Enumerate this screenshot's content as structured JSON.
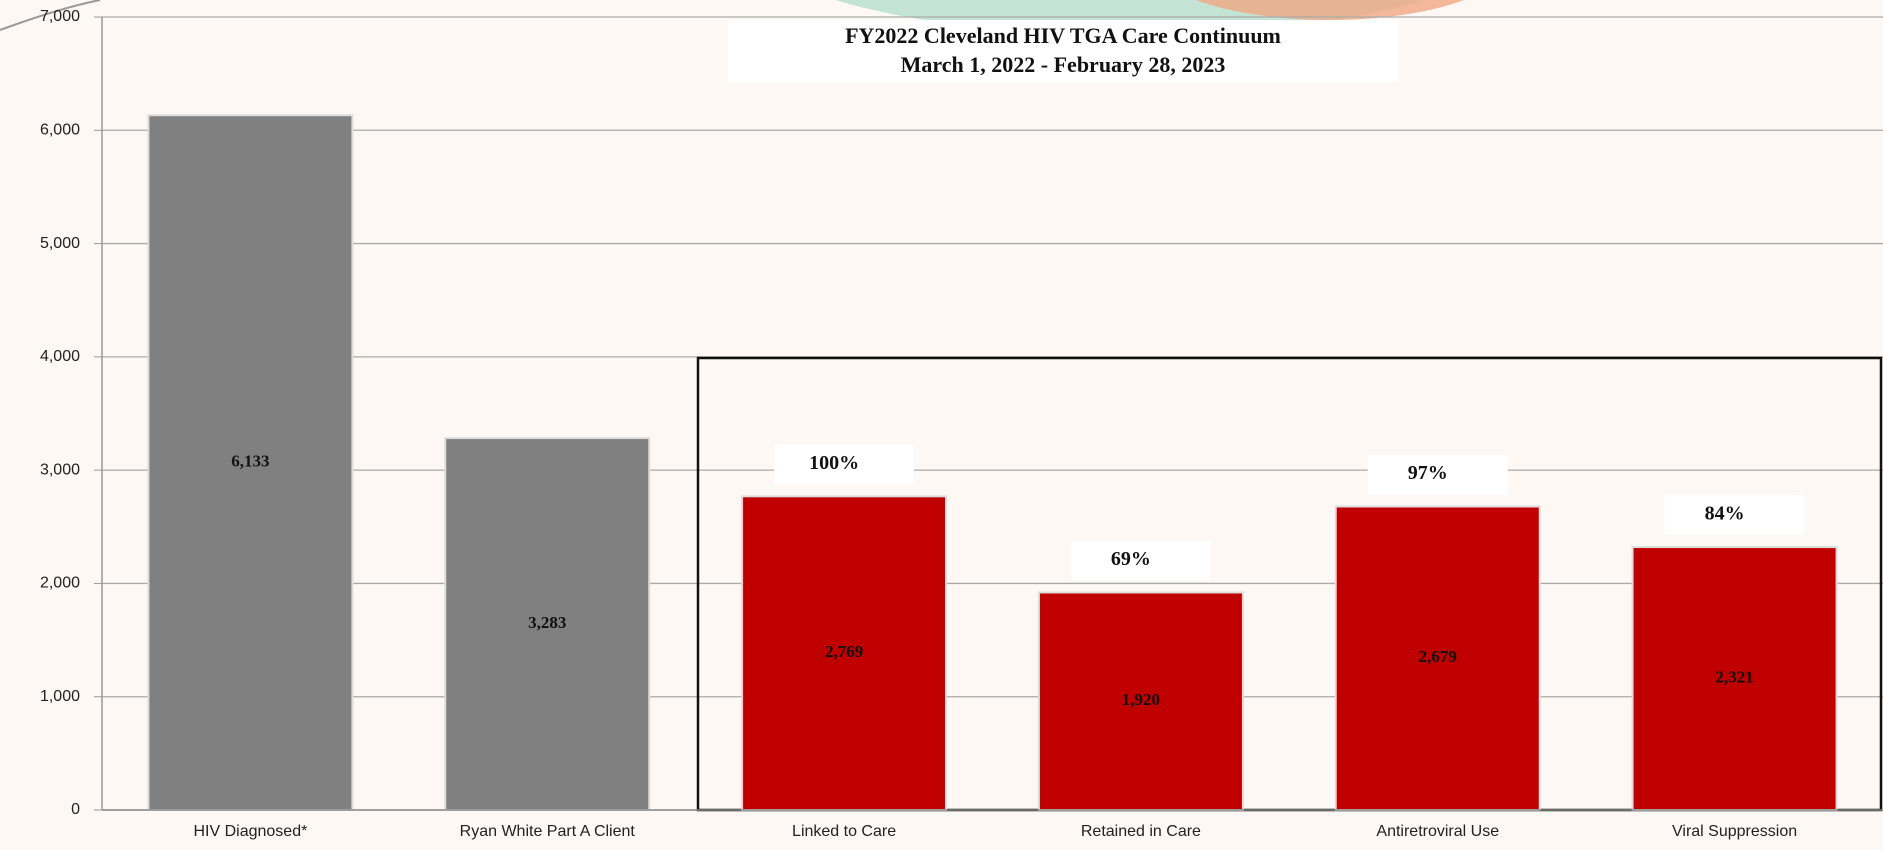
{
  "chart_data": {
    "type": "bar",
    "title": "FY2022 Cleveland HIV TGA Care Continuum",
    "subtitle": "March 1, 2022 - February 28, 2023",
    "categories": [
      "HIV Diagnosed*",
      "Ryan White Part A Client",
      "Linked to Care",
      "Retained in Care",
      "Antiretroviral Use",
      "Viral Suppression"
    ],
    "values": [
      6133,
      3283,
      2769,
      1920,
      2679,
      2321
    ],
    "value_labels": [
      "6,133",
      "3,283",
      "2,769",
      "1,920",
      "2,679",
      "2,321"
    ],
    "percent_labels": [
      null,
      null,
      "100%",
      "69%",
      "97%",
      "84%"
    ],
    "colors": [
      "#808080",
      "#808080",
      "#c00000",
      "#c00000",
      "#c00000",
      "#c00000"
    ],
    "ylim": [
      0,
      7000
    ],
    "yticks": [
      0,
      {
        "value": 1000,
        "label": "1,000"
      },
      {
        "value": 2000,
        "label": "2,000"
      },
      {
        "value": 3000,
        "label": "3,000"
      },
      {
        "value": 4000,
        "label": "4,000"
      },
      {
        "value": 5000,
        "label": "5,000"
      },
      {
        "value": 6000,
        "label": "6,000"
      },
      {
        "value": 7000,
        "label": "7,000"
      }
    ],
    "grid": true
  }
}
